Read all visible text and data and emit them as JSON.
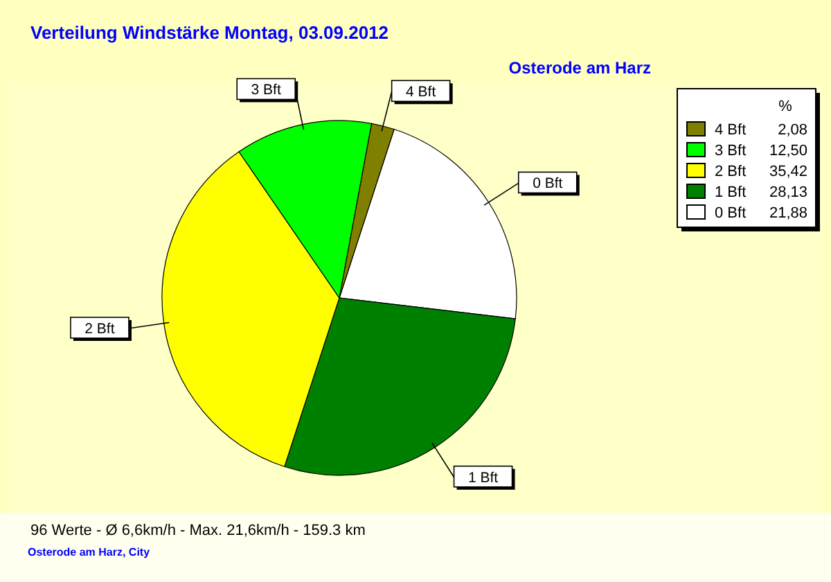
{
  "chart_data": {
    "type": "pie",
    "title": "Verteilung Windstärke  Montag, 03.09.2012",
    "subtitle": "Osterode am Harz",
    "categories": [
      "0 Bft",
      "1 Bft",
      "2 Bft",
      "3 Bft",
      "4 Bft"
    ],
    "values": [
      21.88,
      28.13,
      35.42,
      12.5,
      2.08
    ],
    "value_labels": [
      "21,88",
      "28,13",
      "35,42",
      "12,50",
      "2,08"
    ],
    "colors": [
      "#ffffff",
      "#008000",
      "#ffff00",
      "#00ff00",
      "#808000"
    ],
    "legend": "top right",
    "legend_title": "%",
    "annotations": [
      "96 Werte   -   Ø 6,6km/h  -  Max. 21,6km/h   -   159.3 km",
      "Osterode am Harz, City"
    ]
  }
}
